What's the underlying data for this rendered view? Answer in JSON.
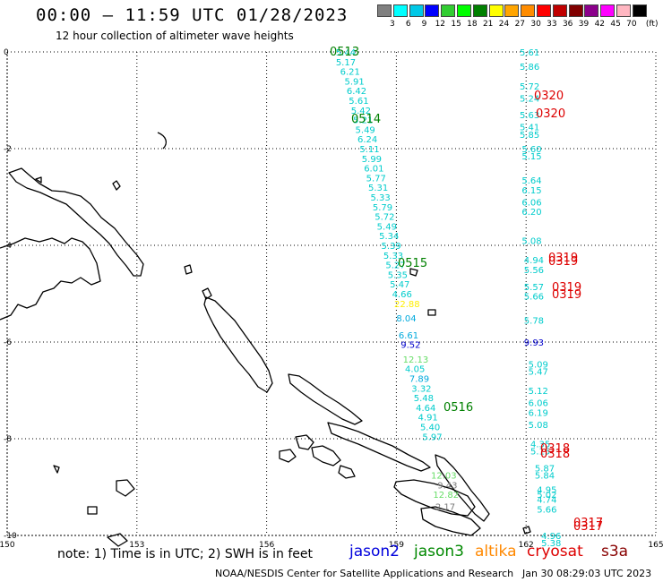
{
  "header": {
    "title": "00:00 – 11:59 UTC 01/28/2023",
    "subtitle": "12 hour collection of altimeter wave heights"
  },
  "legend": {
    "unit": "(ft)",
    "colors": [
      "#808080",
      "#00ffff",
      "#00c8e6",
      "#0000ff",
      "#32cd32",
      "#00ff00",
      "#008000",
      "#ffff00",
      "#ffa500",
      "#ff8c00",
      "#ff0000",
      "#c00000",
      "#800000",
      "#8b008b",
      "#ff00ff",
      "#ffb6c1",
      "#000000"
    ],
    "labels": [
      "3",
      "6",
      "9",
      "12",
      "15",
      "18",
      "21",
      "24",
      "27",
      "30",
      "33",
      "36",
      "39",
      "42",
      "45",
      "70"
    ]
  },
  "axes": {
    "x_ticks": [
      "150",
      "153",
      "156",
      "159",
      "162",
      "165"
    ],
    "y_ticks": [
      "0",
      "-2",
      "-4",
      "-6",
      "-8",
      "-10"
    ]
  },
  "passes": [
    {
      "label": "0513",
      "color": "#008000"
    },
    {
      "label": "0514",
      "color": "#008000"
    },
    {
      "label": "0515",
      "color": "#008000"
    },
    {
      "label": "0516",
      "color": "#008000"
    },
    {
      "label": "0320",
      "color": "#dd0000"
    },
    {
      "label": "0320",
      "color": "#dd0000"
    },
    {
      "label": "0319",
      "color": "#dd0000"
    },
    {
      "label": "0319",
      "color": "#dd0000"
    },
    {
      "label": "0319",
      "color": "#dd0000"
    },
    {
      "label": "0319",
      "color": "#dd0000"
    },
    {
      "label": "0318",
      "color": "#dd0000"
    },
    {
      "label": "0318",
      "color": "#dd0000"
    },
    {
      "label": "0317",
      "color": "#dd0000"
    },
    {
      "label": "0317",
      "color": "#dd0000"
    }
  ],
  "track1": [
    {
      "lon": 157.6,
      "lat": 0.0,
      "v": "5.44",
      "c": "#00cccc"
    },
    {
      "lon": 157.6,
      "lat": -0.2,
      "v": "5.17",
      "c": "#00cccc"
    },
    {
      "lon": 157.7,
      "lat": -0.4,
      "v": "6.21",
      "c": "#00cccc"
    },
    {
      "lon": 157.8,
      "lat": -0.6,
      "v": "5.91",
      "c": "#00cccc"
    },
    {
      "lon": 157.85,
      "lat": -0.8,
      "v": "6.42",
      "c": "#00cccc"
    },
    {
      "lon": 157.9,
      "lat": -1.0,
      "v": "5.61",
      "c": "#00cccc"
    },
    {
      "lon": 157.95,
      "lat": -1.2,
      "v": "5.42",
      "c": "#00cccc"
    },
    {
      "lon": 158.0,
      "lat": -1.4,
      "v": "5.21",
      "c": "#00cccc"
    },
    {
      "lon": 158.05,
      "lat": -1.6,
      "v": "5.49",
      "c": "#00cccc"
    },
    {
      "lon": 158.1,
      "lat": -1.8,
      "v": "6.24",
      "c": "#00cccc"
    },
    {
      "lon": 158.15,
      "lat": -2.0,
      "v": "5.11",
      "c": "#00cccc"
    },
    {
      "lon": 158.2,
      "lat": -2.2,
      "v": "5.99",
      "c": "#00cccc"
    },
    {
      "lon": 158.25,
      "lat": -2.4,
      "v": "6.01",
      "c": "#00cccc"
    },
    {
      "lon": 158.3,
      "lat": -2.6,
      "v": "5.77",
      "c": "#00cccc"
    },
    {
      "lon": 158.35,
      "lat": -2.8,
      "v": "5.31",
      "c": "#00cccc"
    },
    {
      "lon": 158.4,
      "lat": -3.0,
      "v": "5.33",
      "c": "#00cccc"
    },
    {
      "lon": 158.45,
      "lat": -3.2,
      "v": "5.79",
      "c": "#00cccc"
    },
    {
      "lon": 158.5,
      "lat": -3.4,
      "v": "5.72",
      "c": "#00cccc"
    },
    {
      "lon": 158.55,
      "lat": -3.6,
      "v": "5.49",
      "c": "#00cccc"
    },
    {
      "lon": 158.6,
      "lat": -3.8,
      "v": "5.34",
      "c": "#00cccc"
    },
    {
      "lon": 158.65,
      "lat": -4.0,
      "v": "5.39",
      "c": "#00cccc"
    },
    {
      "lon": 158.7,
      "lat": -4.2,
      "v": "5.33",
      "c": "#00cccc"
    },
    {
      "lon": 158.75,
      "lat": -4.4,
      "v": "5.27",
      "c": "#00cccc"
    },
    {
      "lon": 158.8,
      "lat": -4.6,
      "v": "5.35",
      "c": "#00cccc"
    },
    {
      "lon": 158.85,
      "lat": -4.8,
      "v": "5.47",
      "c": "#00cccc"
    },
    {
      "lon": 158.9,
      "lat": -5.0,
      "v": "4.66",
      "c": "#00cccc"
    },
    {
      "lon": 158.95,
      "lat": -5.2,
      "v": "22.88",
      "c": "#ffee00"
    },
    {
      "lon": 159.0,
      "lat": -5.5,
      "v": "8.04",
      "c": "#00aadd"
    },
    {
      "lon": 159.05,
      "lat": -5.85,
      "v": "6.61",
      "c": "#00aadd"
    },
    {
      "lon": 159.1,
      "lat": -6.05,
      "v": "9.52",
      "c": "#0000cc"
    },
    {
      "lon": 159.15,
      "lat": -6.35,
      "v": "12.13",
      "c": "#66dd66"
    },
    {
      "lon": 159.2,
      "lat": -6.55,
      "v": "4.05",
      "c": "#00cccc"
    },
    {
      "lon": 159.3,
      "lat": -6.75,
      "v": "7.89",
      "c": "#00aadd"
    },
    {
      "lon": 159.35,
      "lat": -6.95,
      "v": "3.32",
      "c": "#00cccc"
    },
    {
      "lon": 159.4,
      "lat": -7.15,
      "v": "5.48",
      "c": "#00cccc"
    },
    {
      "lon": 159.45,
      "lat": -7.35,
      "v": "4.64",
      "c": "#00cccc"
    },
    {
      "lon": 159.5,
      "lat": -7.55,
      "v": "4.91",
      "c": "#00cccc"
    },
    {
      "lon": 159.55,
      "lat": -7.75,
      "v": "5.40",
      "c": "#00cccc"
    },
    {
      "lon": 159.6,
      "lat": -7.95,
      "v": "5.97",
      "c": "#00cccc"
    },
    {
      "lon": 159.8,
      "lat": -8.75,
      "v": "12.03",
      "c": "#66dd66"
    },
    {
      "lon": 159.95,
      "lat": -8.95,
      "v": "9.43",
      "c": "#777777"
    },
    {
      "lon": 159.85,
      "lat": -9.15,
      "v": "12.82",
      "c": "#66dd66"
    },
    {
      "lon": 159.9,
      "lat": -9.4,
      "v": "2.17",
      "c": "#777777"
    }
  ],
  "track2": [
    {
      "lon": 161.85,
      "lat": 0.0,
      "v": "5.61",
      "c": "#00cccc"
    },
    {
      "lon": 161.85,
      "lat": -0.3,
      "v": "5.86",
      "c": "#00cccc"
    },
    {
      "lon": 161.85,
      "lat": -0.7,
      "v": "5.72",
      "c": "#00cccc"
    },
    {
      "lon": 161.85,
      "lat": -0.95,
      "v": "5.24",
      "c": "#00cccc"
    },
    {
      "lon": 161.85,
      "lat": -1.3,
      "v": "5.63",
      "c": "#00cccc"
    },
    {
      "lon": 161.85,
      "lat": -1.55,
      "v": "5.41",
      "c": "#00cccc"
    },
    {
      "lon": 161.85,
      "lat": -1.7,
      "v": "5.85",
      "c": "#00cccc"
    },
    {
      "lon": 161.9,
      "lat": -2.0,
      "v": "5.60",
      "c": "#00cccc"
    },
    {
      "lon": 161.9,
      "lat": -2.15,
      "v": "5.15",
      "c": "#00cccc"
    },
    {
      "lon": 161.9,
      "lat": -2.65,
      "v": "5.64",
      "c": "#00cccc"
    },
    {
      "lon": 161.9,
      "lat": -2.85,
      "v": "6.15",
      "c": "#00cccc"
    },
    {
      "lon": 161.9,
      "lat": -3.1,
      "v": "6.06",
      "c": "#00cccc"
    },
    {
      "lon": 161.9,
      "lat": -3.3,
      "v": "6.20",
      "c": "#00cccc"
    },
    {
      "lon": 161.9,
      "lat": -3.9,
      "v": "5.08",
      "c": "#00cccc"
    },
    {
      "lon": 161.95,
      "lat": -4.3,
      "v": "4.94",
      "c": "#00cccc"
    },
    {
      "lon": 161.95,
      "lat": -4.5,
      "v": "5.56",
      "c": "#00cccc"
    },
    {
      "lon": 161.95,
      "lat": -4.85,
      "v": "5.57",
      "c": "#00cccc"
    },
    {
      "lon": 161.95,
      "lat": -5.05,
      "v": "5.66",
      "c": "#00cccc"
    },
    {
      "lon": 161.95,
      "lat": -5.55,
      "v": "5.78",
      "c": "#00cccc"
    },
    {
      "lon": 161.95,
      "lat": -6.0,
      "v": "9.93",
      "c": "#0000cc"
    },
    {
      "lon": 162.05,
      "lat": -6.45,
      "v": "5.09",
      "c": "#00cccc"
    },
    {
      "lon": 162.05,
      "lat": -6.6,
      "v": "5.47",
      "c": "#00cccc"
    },
    {
      "lon": 162.05,
      "lat": -7.0,
      "v": "5.12",
      "c": "#00cccc"
    },
    {
      "lon": 162.05,
      "lat": -7.25,
      "v": "6.06",
      "c": "#00cccc"
    },
    {
      "lon": 162.05,
      "lat": -7.45,
      "v": "6.19",
      "c": "#00cccc"
    },
    {
      "lon": 162.05,
      "lat": -7.7,
      "v": "5.08",
      "c": "#00cccc"
    },
    {
      "lon": 162.1,
      "lat": -8.1,
      "v": "4.35",
      "c": "#00cccc"
    },
    {
      "lon": 162.1,
      "lat": -8.25,
      "v": "5.15",
      "c": "#00cccc"
    },
    {
      "lon": 162.2,
      "lat": -8.6,
      "v": "5.87",
      "c": "#00cccc"
    },
    {
      "lon": 162.2,
      "lat": -8.75,
      "v": "5.84",
      "c": "#00cccc"
    },
    {
      "lon": 162.25,
      "lat": -9.05,
      "v": "4.95",
      "c": "#00cccc"
    },
    {
      "lon": 162.25,
      "lat": -9.15,
      "v": "5.02",
      "c": "#00cccc"
    },
    {
      "lon": 162.25,
      "lat": -9.25,
      "v": "4.74",
      "c": "#00cccc"
    },
    {
      "lon": 162.25,
      "lat": -9.45,
      "v": "5.66",
      "c": "#00cccc"
    },
    {
      "lon": 162.35,
      "lat": -10.0,
      "v": "4.96",
      "c": "#00cccc"
    },
    {
      "lon": 162.35,
      "lat": -10.15,
      "v": "5.38",
      "c": "#00cccc"
    }
  ],
  "note": "note:  1) Time is in UTC;  2) SWH is in feet",
  "satellites": [
    {
      "name": "jason2",
      "color": "#0000dd"
    },
    {
      "name": "jason3",
      "color": "#008800"
    },
    {
      "name": "altika",
      "color": "#ff8800"
    },
    {
      "name": "cryosat",
      "color": "#dd0000"
    },
    {
      "name": "s3a",
      "color": "#880000"
    }
  ],
  "footer": "NOAA/NESDIS Center for Satellite Applications and Research",
  "footer_date": "Jan 30 08:29:03 UTC 2023"
}
